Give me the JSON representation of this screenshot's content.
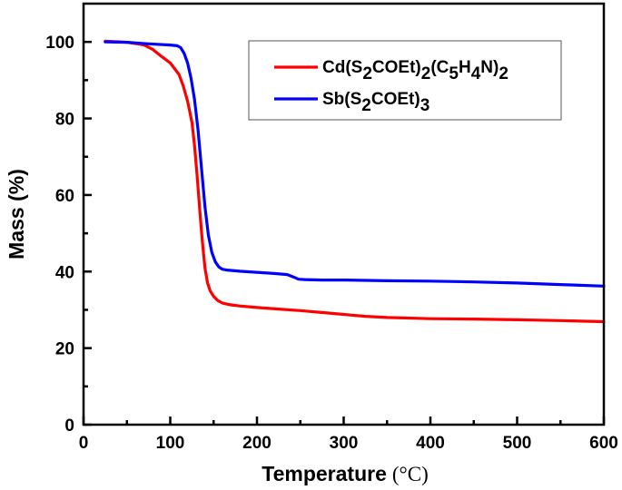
{
  "chart_data": {
    "type": "line",
    "title": "",
    "xlabel": "Temperature",
    "xlabel_unit": "(°C)",
    "ylabel": "Mass (%)",
    "xlim": [
      0,
      600
    ],
    "ylim": [
      0,
      110
    ],
    "x_ticks": [
      0,
      100,
      200,
      300,
      400,
      500,
      600
    ],
    "y_ticks": [
      0,
      20,
      40,
      60,
      80,
      100
    ],
    "x_minor_step": 50,
    "y_minor_step": 10,
    "grid": false,
    "legend_position": "upper right",
    "series": [
      {
        "name": "Cd(S2COEt)2(C5H4N)2",
        "legend_parts": [
          [
            "Cd(S",
            ""
          ],
          [
            "2",
            "sub"
          ],
          [
            "COEt)",
            ""
          ],
          [
            "2",
            "sub"
          ],
          [
            "(C",
            ""
          ],
          [
            "5",
            "sub"
          ],
          [
            "H",
            ""
          ],
          [
            "4",
            "sub"
          ],
          [
            "N)",
            ""
          ],
          [
            "2",
            "sub"
          ]
        ],
        "color": "#ff0000",
        "x": [
          25,
          50,
          70,
          80,
          90,
          100,
          110,
          115,
          120,
          125,
          128,
          131,
          134,
          137,
          140,
          143,
          146,
          150,
          155,
          160,
          165,
          170,
          180,
          200,
          225,
          250,
          275,
          300,
          325,
          350,
          400,
          450,
          500,
          550,
          600
        ],
        "y": [
          100.2,
          99.9,
          99.2,
          98.0,
          96.2,
          94.5,
          91.5,
          88.5,
          84.5,
          79.0,
          73.0,
          65.0,
          56.0,
          48.0,
          41.0,
          37.0,
          35.0,
          33.5,
          32.4,
          31.8,
          31.5,
          31.3,
          31.0,
          30.6,
          30.2,
          29.8,
          29.3,
          28.8,
          28.3,
          28.0,
          27.7,
          27.6,
          27.4,
          27.2,
          26.9
        ]
      },
      {
        "name": "Sb(S2COEt)3",
        "legend_parts": [
          [
            "Sb(S",
            ""
          ],
          [
            "2",
            "sub"
          ],
          [
            "COEt)",
            ""
          ],
          [
            "3",
            "sub"
          ]
        ],
        "color": "#0000ff",
        "x": [
          25,
          50,
          75,
          100,
          108,
          112,
          116,
          120,
          124,
          128,
          132,
          136,
          140,
          144,
          148,
          152,
          156,
          160,
          165,
          170,
          180,
          200,
          220,
          235,
          242,
          248,
          255,
          275,
          300,
          350,
          400,
          450,
          500,
          550,
          600
        ],
        "y": [
          100.0,
          99.9,
          99.5,
          99.2,
          99.0,
          98.5,
          97.0,
          94.5,
          90.5,
          85.0,
          77.0,
          67.0,
          57.0,
          49.5,
          45.0,
          42.5,
          41.2,
          40.6,
          40.4,
          40.3,
          40.1,
          39.8,
          39.5,
          39.2,
          38.6,
          38.0,
          37.9,
          37.8,
          37.8,
          37.6,
          37.5,
          37.3,
          37.0,
          36.6,
          36.2
        ]
      }
    ]
  }
}
